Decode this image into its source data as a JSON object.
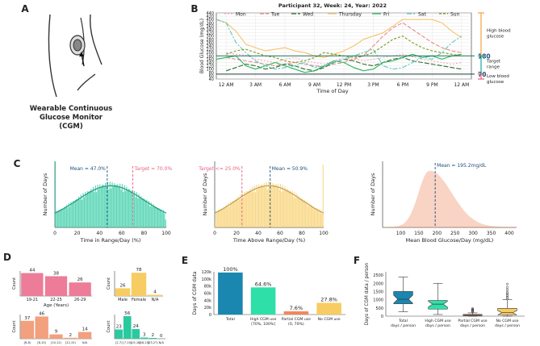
{
  "panel_labels": [
    "A",
    "B",
    "C",
    "D",
    "E",
    "F"
  ],
  "panelA": {
    "caption_lines": [
      "Wearable Continuous",
      "Glucose Monitor",
      "(CGM)"
    ]
  },
  "chart_data": [
    {
      "id": "B",
      "type": "line",
      "title": "Participant 32, Week: 24, Year: 2022",
      "xlabel": "Time of Day",
      "ylabel": "Blood Glucose (mg/dL)",
      "x_ticks": [
        "12 AM",
        "3 AM",
        "6 AM",
        "9 AM",
        "12 PM",
        "3 PM",
        "6 PM",
        "9 PM",
        "12 AM"
      ],
      "y_ticks": [
        40,
        60,
        80,
        100,
        120,
        140,
        160,
        180,
        200,
        220,
        240,
        260,
        280,
        300,
        320,
        340,
        360,
        380,
        400,
        420,
        440
      ],
      "ylim": [
        40,
        440
      ],
      "xlim_hours": [
        -1,
        25
      ],
      "grid": true,
      "legend": "top",
      "thresholds": [
        {
          "value": 180,
          "label": "180"
        },
        {
          "value": 70,
          "label": "70"
        }
      ],
      "range_annotations": [
        {
          "label": "High blood glucose",
          "from": 180,
          "to": 440,
          "color": "#f4a03c"
        },
        {
          "label": "Target range",
          "from": 70,
          "to": 180,
          "color": "#1aa69c"
        },
        {
          "label": "Low blood glucose",
          "from": 40,
          "to": 70,
          "color": "#e8607f"
        }
      ],
      "series": [
        {
          "name": "Mon",
          "color": "#f6a6c4",
          "dash": "2,2",
          "points": [
            [
              0,
              200
            ],
            [
              1,
              190
            ],
            [
              2,
              185
            ],
            [
              3,
              160
            ],
            [
              4,
              150
            ],
            [
              5,
              140
            ],
            [
              6,
              160
            ],
            [
              7,
              170
            ],
            [
              8,
              150
            ],
            [
              9,
              140
            ],
            [
              10,
              130
            ],
            [
              11,
              150
            ],
            [
              12,
              170
            ],
            [
              13,
              160
            ],
            [
              14,
              150
            ],
            [
              15,
              160
            ],
            [
              16,
              170
            ],
            [
              17,
              180
            ],
            [
              18,
              190
            ],
            [
              19,
              175
            ],
            [
              20,
              160
            ],
            [
              21,
              150
            ],
            [
              22,
              140
            ],
            [
              23,
              130
            ],
            [
              24,
              140
            ]
          ]
        },
        {
          "name": "Tue",
          "color": "#e88a8a",
          "dash": "5,2",
          "points": [
            [
              0,
              170
            ],
            [
              1,
              160
            ],
            [
              2,
              150
            ],
            [
              3,
              140
            ],
            [
              4,
              130
            ],
            [
              5,
              120
            ],
            [
              6,
              130
            ],
            [
              7,
              140
            ],
            [
              8,
              130
            ],
            [
              9,
              120
            ],
            [
              10,
              115
            ],
            [
              11,
              130
            ],
            [
              12,
              140
            ],
            [
              13,
              160
            ],
            [
              14,
              180
            ],
            [
              15,
              240
            ],
            [
              16,
              300
            ],
            [
              17,
              350
            ],
            [
              18,
              380
            ],
            [
              19,
              340
            ],
            [
              20,
              300
            ],
            [
              21,
              260
            ],
            [
              22,
              230
            ],
            [
              23,
              210
            ],
            [
              24,
              200
            ]
          ]
        },
        {
          "name": "Wed",
          "color": "#2d6e2d",
          "dash": "6,2",
          "points": [
            [
              0,
              90
            ],
            [
              1,
              110
            ],
            [
              2,
              130
            ],
            [
              3,
              120
            ],
            [
              4,
              100
            ],
            [
              5,
              110
            ],
            [
              6,
              130
            ],
            [
              7,
              120
            ],
            [
              8,
              100
            ],
            [
              9,
              90
            ],
            [
              10,
              110
            ],
            [
              11,
              140
            ],
            [
              12,
              160
            ],
            [
              13,
              150
            ],
            [
              14,
              130
            ],
            [
              15,
              120
            ],
            [
              16,
              140
            ],
            [
              17,
              160
            ],
            [
              18,
              170
            ],
            [
              19,
              150
            ],
            [
              20,
              140
            ],
            [
              21,
              130
            ],
            [
              22,
              120
            ],
            [
              23,
              110
            ],
            [
              24,
              100
            ]
          ]
        },
        {
          "name": "Thursday",
          "color": "#f5c46a",
          "dash": "",
          "points": [
            [
              -1,
              400
            ],
            [
              0,
              380
            ],
            [
              1,
              330
            ],
            [
              2,
              250
            ],
            [
              3,
              230
            ],
            [
              4,
              210
            ],
            [
              5,
              220
            ],
            [
              6,
              230
            ],
            [
              7,
              210
            ],
            [
              8,
              200
            ],
            [
              9,
              180
            ],
            [
              10,
              170
            ],
            [
              11,
              190
            ],
            [
              12,
              210
            ],
            [
              13,
              240
            ],
            [
              14,
              280
            ],
            [
              15,
              300
            ],
            [
              16,
              320
            ],
            [
              17,
              360
            ],
            [
              18,
              400
            ],
            [
              19,
              400
            ],
            [
              20,
              400
            ],
            [
              21,
              400
            ],
            [
              22,
              380
            ],
            [
              23,
              330
            ],
            [
              24,
              290
            ]
          ]
        },
        {
          "name": "Fri",
          "color": "#2ab55a",
          "dash": "",
          "points": [
            [
              -1,
              160
            ],
            [
              0,
              170
            ],
            [
              1,
              180
            ],
            [
              2,
              120
            ],
            [
              3,
              100
            ],
            [
              4,
              120
            ],
            [
              5,
              140
            ],
            [
              6,
              120
            ],
            [
              7,
              100
            ],
            [
              8,
              80
            ],
            [
              9,
              90
            ],
            [
              10,
              120
            ],
            [
              11,
              150
            ],
            [
              12,
              140
            ],
            [
              13,
              110
            ],
            [
              14,
              90
            ],
            [
              15,
              100
            ],
            [
              16,
              140
            ],
            [
              17,
              150
            ],
            [
              18,
              170
            ],
            [
              19,
              190
            ],
            [
              20,
              170
            ],
            [
              21,
              180
            ],
            [
              22,
              160
            ],
            [
              23,
              180
            ],
            [
              24,
              190
            ]
          ]
        },
        {
          "name": "Sat",
          "color": "#5bc7c0",
          "dash": "6,2,2,2",
          "points": [
            [
              -1,
              400
            ],
            [
              0,
              380
            ],
            [
              1,
              260
            ],
            [
              2,
              200
            ],
            [
              3,
              150
            ],
            [
              4,
              120
            ],
            [
              5,
              100
            ],
            [
              6,
              110
            ],
            [
              7,
              120
            ],
            [
              8,
              140
            ],
            [
              9,
              110
            ],
            [
              10,
              120
            ],
            [
              11,
              140
            ],
            [
              12,
              160
            ],
            [
              13,
              180
            ],
            [
              14,
              200
            ],
            [
              15,
              220
            ],
            [
              16,
              120
            ],
            [
              17,
              100
            ],
            [
              18,
              110
            ],
            [
              19,
              140
            ],
            [
              20,
              170
            ],
            [
              21,
              160
            ],
            [
              22,
              200
            ],
            [
              23,
              260
            ],
            [
              24,
              300
            ]
          ]
        },
        {
          "name": "Sun",
          "color": "#7a9a1a",
          "dash": "3,2",
          "points": [
            [
              0,
              190
            ],
            [
              1,
              210
            ],
            [
              2,
              220
            ],
            [
              3,
              200
            ],
            [
              4,
              180
            ],
            [
              5,
              170
            ],
            [
              6,
              150
            ],
            [
              7,
              140
            ],
            [
              8,
              150
            ],
            [
              9,
              170
            ],
            [
              10,
              200
            ],
            [
              11,
              190
            ],
            [
              12,
              180
            ],
            [
              13,
              170
            ],
            [
              14,
              180
            ],
            [
              15,
              200
            ],
            [
              16,
              240
            ],
            [
              17,
              280
            ],
            [
              18,
              300
            ],
            [
              19,
              260
            ],
            [
              20,
              230
            ],
            [
              21,
              210
            ],
            [
              22,
              200
            ],
            [
              23,
              190
            ],
            [
              24,
              180
            ]
          ]
        }
      ]
    },
    {
      "id": "C1",
      "type": "bar",
      "xlabel": "Time in Range/Day (%)",
      "ylabel": "Number of Days",
      "xlim": [
        0,
        100
      ],
      "x_ticks": [
        0,
        20,
        40,
        60,
        80,
        100
      ],
      "color": "#2bc9a0",
      "kde_peak_fraction": 0.55,
      "edge_spikes": {
        "left": 1.0,
        "right": 0.12
      },
      "annotations": [
        {
          "x": 47.0,
          "label": "Mean = 47.0%",
          "color": "#1f4e79"
        },
        {
          "x": 70.0,
          "label": "Target = 70.0%",
          "color": "#e8607f"
        }
      ]
    },
    {
      "id": "C2",
      "type": "bar",
      "xlabel": "Time Above Range/Day (%)",
      "ylabel": "Number of Days",
      "xlim": [
        0,
        100
      ],
      "x_ticks": [
        0,
        20,
        40,
        60,
        80,
        100
      ],
      "color": "#f7cc63",
      "kde_peak_fraction": 0.55,
      "edge_spikes": {
        "left": 0.1,
        "right": 0.95
      },
      "annotations": [
        {
          "x": 25.0,
          "label": "Target <= 25.0%",
          "color": "#e8607f"
        },
        {
          "x": 50.9,
          "label": "Mean = 50.9%",
          "color": "#1f4e79"
        }
      ]
    },
    {
      "id": "C3",
      "type": "area",
      "xlabel": "Mean Blood Glucose/Day (mg/dL)",
      "ylabel": "Number of Days",
      "xlim": [
        50,
        420
      ],
      "x_ticks": [
        100,
        150,
        200,
        250,
        300,
        350,
        400
      ],
      "color": "#f2a07e",
      "peak_x": 180,
      "annotations": [
        {
          "x": 195.2,
          "label": "Mean = 195.2mg/dL",
          "color": "#1f4e79"
        }
      ]
    },
    {
      "id": "D1",
      "type": "bar",
      "xlabel": "Age (Years)",
      "ylabel": "Count",
      "categories": [
        "19-21",
        "22-25",
        "26-29"
      ],
      "values": [
        44,
        38,
        26
      ],
      "color": "#ec7c98"
    },
    {
      "id": "D2",
      "type": "bar",
      "xlabel": "",
      "ylabel": "Count",
      "categories": [
        "Male",
        "Female",
        "N/A"
      ],
      "values": [
        26,
        78,
        4
      ],
      "color": "#f7cc63"
    },
    {
      "id": "D3",
      "type": "bar",
      "xlabel": "Hemoglobin A1c (%)",
      "ylabel": "Count",
      "categories": [
        "[6,8)",
        "[8,10)",
        "[10,12)",
        "[12,15)",
        "N/A"
      ],
      "values": [
        37,
        46,
        9,
        2,
        14
      ],
      "color": "#f2a07e"
    },
    {
      "id": "D4",
      "type": "bar",
      "xlabel": "Years since T1D Diagnosis",
      "ylabel": "Count",
      "categories": [
        "[2,7)",
        "[7,15)",
        "[15,18)",
        "[18,23)",
        "[23,27)",
        "N/A"
      ],
      "values": [
        23,
        56,
        24,
        3,
        2,
        0
      ],
      "color": "#2bc9a0"
    },
    {
      "id": "E",
      "type": "bar",
      "ylabel": "Days of CGM data",
      "ylim": [
        0,
        120000
      ],
      "y_ticks": [
        "0",
        "20k",
        "40k",
        "60k",
        "80k",
        "100k",
        "120k"
      ],
      "categories": [
        "Total",
        "High CGM use\n[70%, 100%]",
        "Partial CGM use\n(0, 70%)",
        "No CGM use"
      ],
      "values": [
        100,
        64.6,
        7.6,
        27.8
      ],
      "value_labels": [
        "100%",
        "64.6%",
        "7.6%",
        "27.8%"
      ],
      "total_days": 118000,
      "colors": [
        "#1a87b0",
        "#2ee0a8",
        "#f2875a",
        "#f7cc63"
      ]
    },
    {
      "id": "F",
      "type": "box",
      "ylabel": "Days of CGM data / person",
      "ylim": [
        0,
        2700
      ],
      "y_ticks": [
        0,
        500,
        1000,
        1500,
        2000,
        2500
      ],
      "categories": [
        "Total\ndays / person",
        "High CGM use\ndays / person",
        "Partial CGM use\ndays / person",
        "No CGM use\ndays / person"
      ],
      "colors": [
        "#1a87b0",
        "#2ee0a8",
        "#f2875a",
        "#f7cc63"
      ],
      "boxes": [
        {
          "min": 270,
          "q1": 760,
          "median": 1030,
          "q3": 1500,
          "max": 2380,
          "outliers": []
        },
        {
          "min": 100,
          "q1": 430,
          "median": 730,
          "q3": 950,
          "max": 2000,
          "outliers": []
        },
        {
          "min": 0,
          "q1": 30,
          "median": 60,
          "q3": 110,
          "max": 200,
          "outliers": [
            260,
            300,
            340,
            380,
            420,
            460
          ]
        },
        {
          "min": 0,
          "q1": 80,
          "median": 210,
          "q3": 470,
          "max": 1000,
          "outliers": [
            1050,
            1150,
            1250,
            1350,
            1450,
            1600,
            1750,
            1950
          ]
        }
      ]
    }
  ]
}
